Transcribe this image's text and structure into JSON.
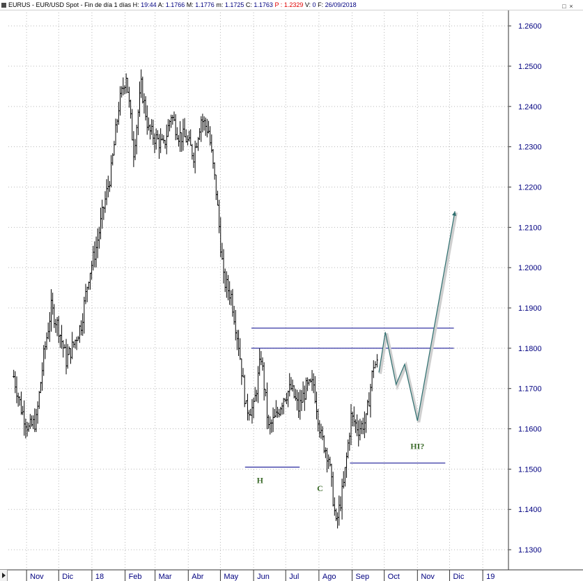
{
  "header": {
    "symbol": "EURUS",
    "description": "EUR/USD Spot - Fin de día 1 días",
    "h_label": "H:",
    "h_value": "19:44",
    "a_label": "A:",
    "a_value": "1.1766",
    "m_label": "M:",
    "m_value": "1.1776",
    "min_label": "m:",
    "min_value": "1.1725",
    "c_label": "C:",
    "c_value": "1.1763",
    "p_label": "P :",
    "p_value": "1.2329",
    "v_label": "V:",
    "v_value": "0",
    "f_label": "F:",
    "f_value": "26/09/2018"
  },
  "colors": {
    "price_bars": "#000000",
    "axis_text": "#000080",
    "hline": "#00008b",
    "projection": "#2e6f6f",
    "annotation": "#3c6b2b",
    "grid": "#b8b8b8"
  },
  "chart_data": {
    "type": "line",
    "title": "",
    "ylim": [
      1.125,
      1.264
    ],
    "y_ticks": [
      "1.1300",
      "1.1400",
      "1.1500",
      "1.1600",
      "1.1700",
      "1.1800",
      "1.1900",
      "1.2000",
      "1.2100",
      "1.2200",
      "1.2300",
      "1.2400",
      "1.2500",
      "1.2600"
    ],
    "x_ticks": [
      "Nov",
      "Dic",
      "18",
      "Feb",
      "Mar",
      "Abr",
      "May",
      "Jun",
      "Jul",
      "Ago",
      "Sep",
      "Oct",
      "Nov",
      "Dic",
      "19"
    ],
    "grid": true,
    "series": [
      {
        "style": "ohlc-bars",
        "x": [
          "2017-10-20",
          "2017-10-27",
          "2017-11-03",
          "2017-11-10",
          "2017-11-17",
          "2017-11-24",
          "2017-12-01",
          "2017-12-08",
          "2017-12-15",
          "2017-12-22",
          "2017-12-29",
          "2018-01-05",
          "2018-01-12",
          "2018-01-19",
          "2018-01-26",
          "2018-02-02",
          "2018-02-09",
          "2018-02-16",
          "2018-02-23",
          "2018-03-02",
          "2018-03-09",
          "2018-03-16",
          "2018-03-23",
          "2018-03-30",
          "2018-04-06",
          "2018-04-13",
          "2018-04-20",
          "2018-04-27",
          "2018-05-04",
          "2018-05-11",
          "2018-05-18",
          "2018-05-25",
          "2018-06-01",
          "2018-06-08",
          "2018-06-15",
          "2018-06-22",
          "2018-06-29",
          "2018-07-06",
          "2018-07-13",
          "2018-07-20",
          "2018-07-27",
          "2018-08-03",
          "2018-08-10",
          "2018-08-17",
          "2018-08-24",
          "2018-08-31",
          "2018-09-07",
          "2018-09-14",
          "2018-09-21",
          "2018-09-26"
        ],
        "y": [
          1.173,
          1.165,
          1.16,
          1.162,
          1.178,
          1.19,
          1.185,
          1.177,
          1.181,
          1.186,
          1.198,
          1.205,
          1.215,
          1.224,
          1.24,
          1.248,
          1.229,
          1.245,
          1.234,
          1.232,
          1.23,
          1.238,
          1.233,
          1.232,
          1.228,
          1.237,
          1.234,
          1.219,
          1.197,
          1.193,
          1.181,
          1.165,
          1.165,
          1.178,
          1.16,
          1.163,
          1.168,
          1.17,
          1.165,
          1.17,
          1.171,
          1.158,
          1.153,
          1.136,
          1.146,
          1.163,
          1.16,
          1.162,
          1.176,
          1.176
        ]
      },
      {
        "name": "",
        "style": "projection",
        "x": [
          "2018-09-26",
          "2018-10-02",
          "2018-10-12",
          "2018-10-20",
          "2018-11-01",
          "2018-12-06"
        ],
        "y": [
          1.174,
          1.184,
          1.171,
          1.176,
          1.162,
          1.214
        ]
      }
    ],
    "lines": [
      {
        "y": 1.185,
        "x_start": "2018-05-30",
        "x_end": "2018-12-05"
      },
      {
        "y": 1.18,
        "x_start": "2018-05-30",
        "x_end": "2018-12-05"
      },
      {
        "y": 1.1505,
        "x_start": "2018-05-24",
        "x_end": "2018-07-14"
      },
      {
        "y": 1.1515,
        "x_start": "2018-08-30",
        "x_end": "2018-11-27"
      }
    ],
    "annotations": [
      {
        "text": "H",
        "x": "2018-06-07",
        "y": 1.1465
      },
      {
        "text": "C",
        "x": "2018-08-02",
        "y": 1.1445
      },
      {
        "text": "HI?",
        "x": "2018-11-01",
        "y": 1.155
      }
    ]
  }
}
